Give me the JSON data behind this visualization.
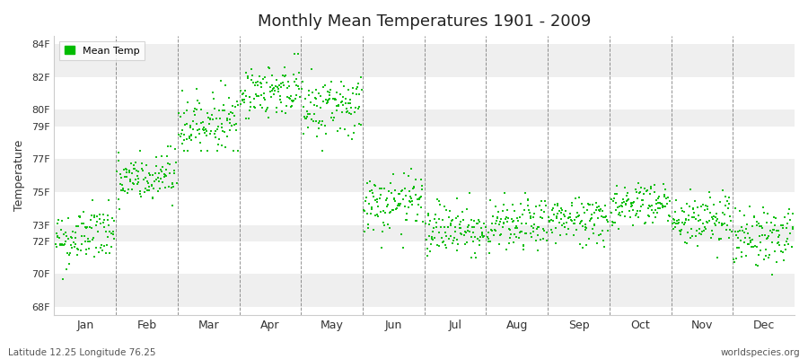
{
  "title": "Monthly Mean Temperatures 1901 - 2009",
  "ylabel": "Temperature",
  "xlabel": "",
  "footer_left": "Latitude 12.25 Longitude 76.25",
  "footer_right": "worldspecies.org",
  "legend_label": "Mean Temp",
  "marker_color": "#00bb00",
  "background_color": "#ffffff",
  "band_colors": [
    "#efefef",
    "#ffffff"
  ],
  "yticks": [
    68,
    70,
    72,
    73,
    75,
    77,
    79,
    80,
    82,
    84
  ],
  "ytick_labels": [
    "68F",
    "70F",
    "72F",
    "73F",
    "75F",
    "77F",
    "79F",
    "80F",
    "82F",
    "84F"
  ],
  "ylim": [
    67.5,
    84.5
  ],
  "months": [
    "Jan",
    "Feb",
    "Mar",
    "Apr",
    "May",
    "Jun",
    "Jul",
    "Aug",
    "Sep",
    "Oct",
    "Nov",
    "Dec"
  ],
  "month_means": [
    72.3,
    75.8,
    79.2,
    81.2,
    80.2,
    74.2,
    72.8,
    72.9,
    73.3,
    74.3,
    73.3,
    72.3
  ],
  "month_stds": [
    0.9,
    0.85,
    0.9,
    0.8,
    1.0,
    0.9,
    0.85,
    0.8,
    0.75,
    0.7,
    0.85,
    0.9
  ],
  "month_mins": [
    69.0,
    73.0,
    77.5,
    79.5,
    77.5,
    71.0,
    71.0,
    71.2,
    71.5,
    72.5,
    71.0,
    69.5
  ],
  "month_maxs": [
    74.5,
    77.8,
    83.5,
    83.8,
    82.5,
    77.0,
    75.5,
    75.2,
    75.5,
    76.2,
    76.5,
    74.5
  ],
  "n_years": 109,
  "seed": 42,
  "month_trend": [
    0.005,
    0.004,
    0.003,
    0.003,
    0.002,
    0.002,
    0.001,
    0.001,
    0.001,
    0.001,
    0.001,
    0.002
  ]
}
